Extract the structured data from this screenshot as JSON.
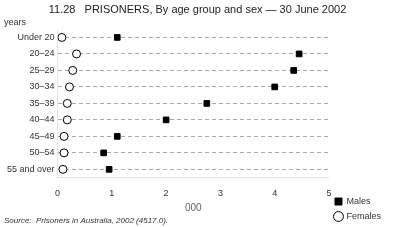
{
  "chart_data": {
    "type": "dot",
    "title": "11.28   PRISONERS, By age group and sex — 30 June 2002",
    "xlabel": "000",
    "ylabel": "years",
    "source": "Source:  Prisoners in Australia, 2002 (4517.0).",
    "orientation": "horizontal",
    "categories": [
      "Under 20",
      "20–24",
      "25–29",
      "30–34",
      "35–39",
      "40–44",
      "45–49",
      "50–54",
      "55 and over"
    ],
    "series": [
      {
        "name": "Males",
        "color": "#000000",
        "marker": "square",
        "values": [
          1.1,
          4.45,
          4.35,
          4.0,
          2.75,
          2.0,
          1.1,
          0.85,
          0.95
        ]
      },
      {
        "name": "Females",
        "color": "#000000",
        "marker": "hollow_circle",
        "values": [
          0.08,
          0.35,
          0.28,
          0.22,
          0.18,
          0.18,
          0.12,
          0.12,
          0.1
        ]
      }
    ],
    "xlim": [
      0,
      5
    ],
    "xticks": [
      0,
      1,
      2,
      3,
      4,
      5
    ],
    "grid": "y",
    "legend": "lower right"
  }
}
